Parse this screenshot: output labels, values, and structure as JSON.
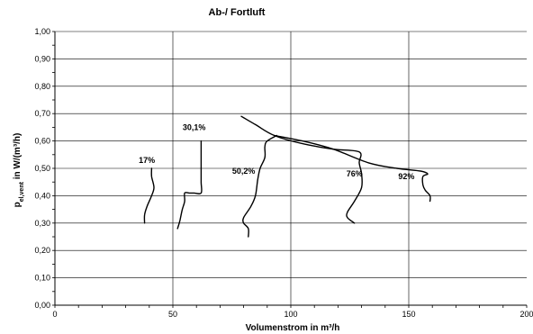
{
  "chart_data": {
    "type": "line",
    "title": "Ab-/ Fortluft",
    "xlabel": "Volumenstrom in m³/h",
    "ylabel_main": "p",
    "ylabel_sub": "el,vent",
    "ylabel_rest": " in W/(m³/h)",
    "xlim": [
      0,
      200
    ],
    "ylim": [
      0,
      1
    ],
    "x_ticks": [
      0,
      50,
      100,
      150,
      200
    ],
    "y_ticks": [
      0,
      0.1,
      0.2,
      0.3,
      0.4,
      0.5,
      0.6,
      0.7,
      0.8,
      0.9,
      1.0
    ],
    "y_tick_labels": [
      "0,00",
      "0,10",
      "0,20",
      "0,30",
      "0,40",
      "0,50",
      "0,60",
      "0,70",
      "0,80",
      "0,90",
      "1,00"
    ],
    "x_tick_labels": [
      "0",
      "50",
      "100",
      "150",
      "200"
    ],
    "grid": {
      "horizontal": true,
      "vertical_major": [
        50,
        100,
        150
      ]
    },
    "series": [
      {
        "name": "17%",
        "label_at": [
          39,
          0.52
        ],
        "points": [
          [
            41,
            0.5
          ],
          [
            41,
            0.47
          ],
          [
            42,
            0.43
          ],
          [
            41,
            0.4
          ],
          [
            39,
            0.36
          ],
          [
            38,
            0.33
          ],
          [
            38,
            0.3
          ]
        ]
      },
      {
        "name": "30,1%",
        "label_at": [
          59,
          0.64
        ],
        "points": [
          [
            62,
            0.6
          ],
          [
            62,
            0.55
          ],
          [
            62,
            0.5
          ],
          [
            62,
            0.45
          ],
          [
            62,
            0.41
          ],
          [
            59,
            0.41
          ],
          [
            57,
            0.41
          ],
          [
            55,
            0.41
          ],
          [
            55,
            0.38
          ],
          [
            54,
            0.35
          ],
          [
            53,
            0.31
          ],
          [
            52,
            0.28
          ]
        ]
      },
      {
        "name": "50,2%",
        "label_at": [
          80,
          0.48
        ],
        "points": [
          [
            94,
            0.62
          ],
          [
            90,
            0.6
          ],
          [
            89,
            0.58
          ],
          [
            89,
            0.54
          ],
          [
            87,
            0.5
          ],
          [
            86,
            0.46
          ],
          [
            85,
            0.4
          ],
          [
            83,
            0.36
          ],
          [
            80,
            0.32
          ],
          [
            80,
            0.3
          ],
          [
            82,
            0.28
          ],
          [
            82,
            0.25
          ]
        ]
      },
      {
        "name": "76%",
        "label_at": [
          127,
          0.47
        ],
        "points": [
          [
            79,
            0.69
          ],
          [
            85,
            0.66
          ],
          [
            93,
            0.62
          ],
          [
            105,
            0.59
          ],
          [
            118,
            0.57
          ],
          [
            129,
            0.56
          ],
          [
            129,
            0.52
          ],
          [
            130,
            0.48
          ],
          [
            130,
            0.43
          ],
          [
            127,
            0.38
          ],
          [
            124,
            0.34
          ],
          [
            124,
            0.32
          ],
          [
            127,
            0.3
          ]
        ]
      },
      {
        "name": "92%",
        "label_at": [
          149,
          0.46
        ],
        "points": [
          [
            93,
            0.62
          ],
          [
            105,
            0.6
          ],
          [
            118,
            0.57
          ],
          [
            133,
            0.52
          ],
          [
            145,
            0.5
          ],
          [
            155,
            0.49
          ],
          [
            158,
            0.48
          ],
          [
            156,
            0.47
          ],
          [
            156,
            0.44
          ],
          [
            157,
            0.42
          ],
          [
            159,
            0.4
          ],
          [
            159,
            0.38
          ]
        ]
      }
    ]
  }
}
